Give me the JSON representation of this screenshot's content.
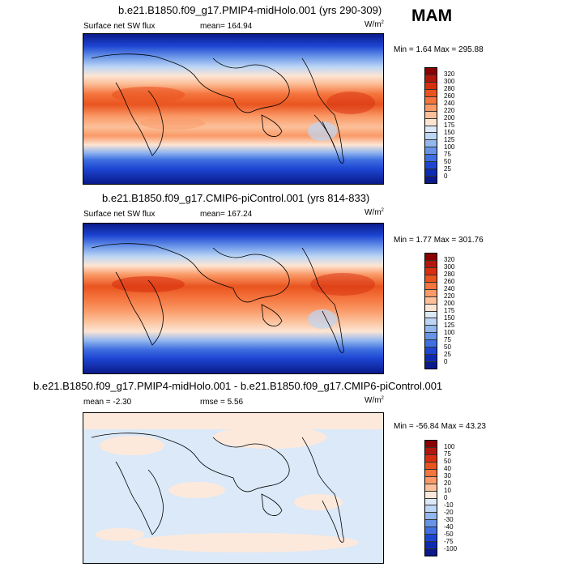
{
  "season": "MAM",
  "panels": [
    {
      "title": "b.e21.B1850.f09_g17.PMIP4-midHolo.001 (yrs 290-309)",
      "left_label": "Surface net SW flux",
      "center_label": "mean= 164.94",
      "units": "W/m",
      "units_exp": "2",
      "minmax": "Min =  1.64 Max = 295.88",
      "colorbar": {
        "labels": [
          "320",
          "300",
          "280",
          "260",
          "240",
          "220",
          "200",
          "175",
          "150",
          "125",
          "100",
          "75",
          "50",
          "25",
          "0"
        ],
        "colors": [
          "#8b0000",
          "#b1170d",
          "#d8300f",
          "#e9541f",
          "#f5753e",
          "#fa9a68",
          "#fcc09a",
          "#fde5d3",
          "#dbe9f8",
          "#bdd6f5",
          "#93b7ef",
          "#6894e8",
          "#3f6fe0",
          "#1d45d2",
          "#0d2bb0",
          "#0a1a8a"
        ]
      }
    },
    {
      "title": "b.e21.B1850.f09_g17.CMIP6-piControl.001 (yrs 814-833)",
      "left_label": "Surface net SW flux",
      "center_label": "mean= 167.24",
      "units": "W/m",
      "units_exp": "2",
      "minmax": "Min =  1.77 Max = 301.76",
      "colorbar": {
        "labels": [
          "320",
          "300",
          "280",
          "260",
          "240",
          "220",
          "200",
          "175",
          "150",
          "125",
          "100",
          "75",
          "50",
          "25",
          "0"
        ],
        "colors": [
          "#8b0000",
          "#b1170d",
          "#d8300f",
          "#e9541f",
          "#f5753e",
          "#fa9a68",
          "#fcc09a",
          "#fde5d3",
          "#dbe9f8",
          "#bdd6f5",
          "#93b7ef",
          "#6894e8",
          "#3f6fe0",
          "#1d45d2",
          "#0d2bb0",
          "#0a1a8a"
        ]
      }
    },
    {
      "title": "b.e21.B1850.f09_g17.PMIP4-midHolo.001 - b.e21.B1850.f09_g17.CMIP6-piControl.001",
      "left_label": "mean =  -2.30",
      "center_label": "rmse =   5.56",
      "units": "W/m",
      "units_exp": "2",
      "minmax": "Min = -56.84 Max = 43.23",
      "colorbar": {
        "labels": [
          "100",
          "75",
          "50",
          "40",
          "30",
          "20",
          "10",
          "0",
          "-10",
          "-20",
          "-30",
          "-40",
          "-50",
          "-75",
          "-100"
        ],
        "colors": [
          "#8b0000",
          "#b1170d",
          "#d8300f",
          "#e9541f",
          "#f5753e",
          "#fa9a68",
          "#fcc09a",
          "#fde9dc",
          "#dbe9f8",
          "#bdd6f5",
          "#93b7ef",
          "#6894e8",
          "#3f6fe0",
          "#1d45d2",
          "#0d2bb0",
          "#0a1a8a"
        ]
      }
    }
  ]
}
